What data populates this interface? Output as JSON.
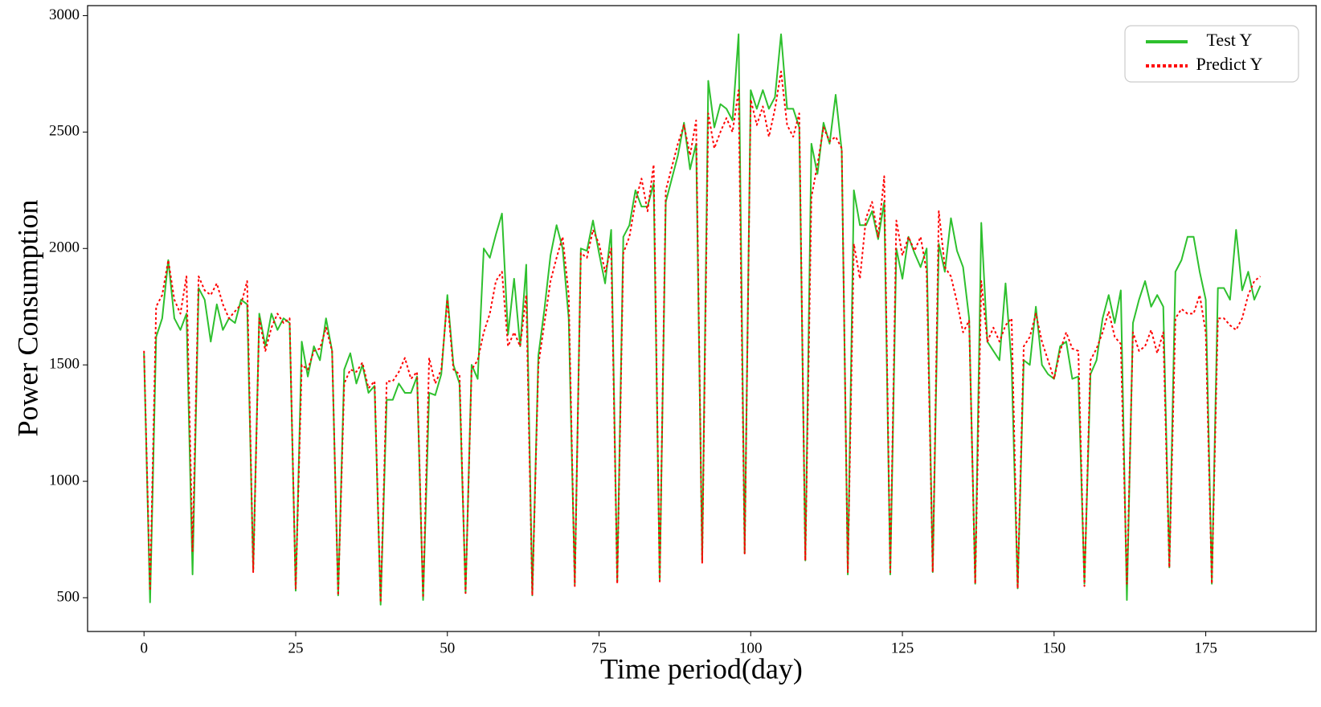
{
  "chart_data": {
    "type": "line",
    "x_label": "Time period(day)",
    "y_label": "Power Consumption",
    "x": [
      0,
      1,
      2,
      3,
      4,
      5,
      6,
      7,
      8,
      9,
      10,
      11,
      12,
      13,
      14,
      15,
      16,
      17,
      18,
      19,
      20,
      21,
      22,
      23,
      24,
      25,
      26,
      27,
      28,
      29,
      30,
      31,
      32,
      33,
      34,
      35,
      36,
      37,
      38,
      39,
      40,
      41,
      42,
      43,
      44,
      45,
      46,
      47,
      48,
      49,
      50,
      51,
      52,
      53,
      54,
      55,
      56,
      57,
      58,
      59,
      60,
      61,
      62,
      63,
      64,
      65,
      66,
      67,
      68,
      69,
      70,
      71,
      72,
      73,
      74,
      75,
      76,
      77,
      78,
      79,
      80,
      81,
      82,
      83,
      84,
      85,
      86,
      87,
      88,
      89,
      90,
      91,
      92,
      93,
      94,
      95,
      96,
      97,
      98,
      99,
      100,
      101,
      102,
      103,
      104,
      105,
      106,
      107,
      108,
      109,
      110,
      111,
      112,
      113,
      114,
      115,
      116,
      117,
      118,
      119,
      120,
      121,
      122,
      123,
      124,
      125,
      126,
      127,
      128,
      129,
      130,
      131,
      132,
      133,
      134,
      135,
      136,
      137,
      138,
      139,
      140,
      141,
      142,
      143,
      144,
      145,
      146,
      147,
      148,
      149,
      150,
      151,
      152,
      153,
      154,
      155,
      156,
      157,
      158,
      159,
      160,
      161,
      162,
      163,
      164,
      165,
      166,
      167,
      168,
      169,
      170,
      171,
      172,
      173,
      174,
      175,
      176,
      177,
      178,
      179,
      180,
      181,
      182,
      183,
      184
    ],
    "series": [
      {
        "name": "Test Y",
        "color": "#2ec02e",
        "style": "solid",
        "values": [
          1550,
          480,
          1620,
          1700,
          1950,
          1700,
          1650,
          1720,
          600,
          1830,
          1780,
          1600,
          1760,
          1650,
          1700,
          1680,
          1780,
          1760,
          620,
          1720,
          1580,
          1720,
          1650,
          1700,
          1680,
          530,
          1600,
          1450,
          1580,
          1520,
          1700,
          1560,
          510,
          1480,
          1550,
          1420,
          1500,
          1380,
          1410,
          470,
          1350,
          1350,
          1420,
          1380,
          1380,
          1450,
          490,
          1380,
          1370,
          1460,
          1800,
          1500,
          1420,
          520,
          1500,
          1440,
          2000,
          1960,
          2060,
          2150,
          1630,
          1870,
          1580,
          1930,
          510,
          1540,
          1740,
          1970,
          2100,
          2000,
          1700,
          560,
          2000,
          1990,
          2120,
          1980,
          1850,
          2080,
          570,
          2050,
          2100,
          2250,
          2180,
          2180,
          2280,
          570,
          2200,
          2300,
          2400,
          2540,
          2340,
          2450,
          660,
          2720,
          2520,
          2620,
          2600,
          2550,
          2920,
          690,
          2680,
          2600,
          2680,
          2600,
          2650,
          2920,
          2600,
          2600,
          2520,
          660,
          2450,
          2320,
          2540,
          2450,
          2660,
          2420,
          600,
          2250,
          2100,
          2100,
          2160,
          2040,
          2200,
          600,
          2000,
          1870,
          2050,
          1980,
          1920,
          2000,
          610,
          2020,
          1900,
          2130,
          1990,
          1920,
          1700,
          560,
          2110,
          1600,
          1560,
          1520,
          1850,
          1500,
          540,
          1520,
          1500,
          1750,
          1500,
          1460,
          1440,
          1580,
          1600,
          1440,
          1450,
          560,
          1460,
          1520,
          1700,
          1800,
          1680,
          1820,
          490,
          1680,
          1780,
          1860,
          1750,
          1800,
          1750,
          630,
          1900,
          1950,
          2050,
          2050,
          1900,
          1780,
          560,
          1830,
          1830,
          1780,
          2080,
          1820,
          1900,
          1780,
          1840
        ]
      },
      {
        "name": "Predict Y",
        "color": "#ff0000",
        "style": "dotted",
        "values": [
          1560,
          530,
          1750,
          1800,
          1950,
          1780,
          1720,
          1880,
          700,
          1880,
          1820,
          1800,
          1850,
          1760,
          1700,
          1730,
          1760,
          1860,
          610,
          1700,
          1560,
          1660,
          1720,
          1680,
          1700,
          540,
          1500,
          1480,
          1560,
          1570,
          1660,
          1560,
          510,
          1420,
          1480,
          1470,
          1510,
          1400,
          1430,
          480,
          1430,
          1430,
          1470,
          1530,
          1440,
          1470,
          500,
          1530,
          1420,
          1480,
          1780,
          1480,
          1460,
          520,
          1480,
          1520,
          1640,
          1720,
          1860,
          1900,
          1580,
          1640,
          1580,
          1800,
          510,
          1500,
          1680,
          1860,
          1960,
          2050,
          1800,
          550,
          1980,
          1960,
          2080,
          2020,
          1900,
          2000,
          560,
          1980,
          2050,
          2200,
          2300,
          2160,
          2360,
          570,
          2250,
          2350,
          2450,
          2530,
          2400,
          2550,
          650,
          2580,
          2430,
          2500,
          2560,
          2500,
          2680,
          690,
          2640,
          2530,
          2610,
          2480,
          2600,
          2760,
          2530,
          2480,
          2580,
          660,
          2220,
          2360,
          2520,
          2460,
          2480,
          2430,
          610,
          2020,
          1870,
          2130,
          2200,
          2050,
          2310,
          610,
          2120,
          1970,
          2050,
          1990,
          2050,
          1900,
          610,
          2160,
          1920,
          1880,
          1770,
          1640,
          1690,
          560,
          1860,
          1600,
          1660,
          1600,
          1670,
          1700,
          540,
          1580,
          1620,
          1720,
          1600,
          1520,
          1440,
          1560,
          1640,
          1570,
          1560,
          550,
          1520,
          1570,
          1640,
          1730,
          1620,
          1590,
          560,
          1640,
          1560,
          1580,
          1650,
          1550,
          1640,
          630,
          1700,
          1740,
          1720,
          1720,
          1800,
          1640,
          560,
          1700,
          1700,
          1670,
          1650,
          1700,
          1800,
          1860,
          1880
        ]
      }
    ],
    "xlim": [
      -9.3,
      193.2
    ],
    "ylim": [
      355,
      3043
    ],
    "xticks": [
      0,
      25,
      50,
      75,
      100,
      125,
      150,
      175
    ],
    "yticks": [
      500,
      1000,
      1500,
      2000,
      2500,
      3000
    ],
    "legend": "upper right"
  }
}
